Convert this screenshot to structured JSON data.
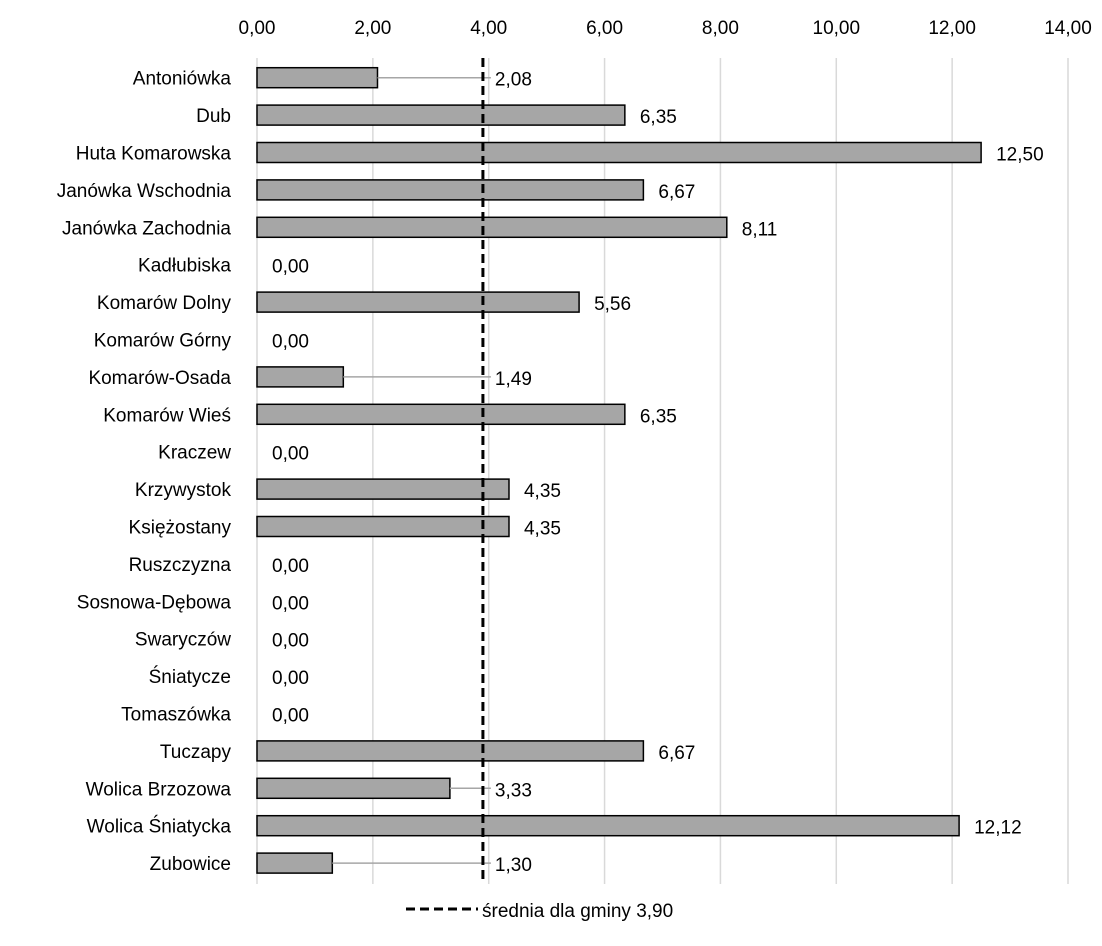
{
  "chart_data": {
    "type": "bar",
    "orientation": "horizontal",
    "categories": [
      "Antoniówka",
      "Dub",
      "Huta Komarowska",
      "Janówka Wschodnia",
      "Janówka Zachodnia",
      "Kadłubiska",
      "Komarów Dolny",
      "Komarów Górny",
      "Komarów-Osada",
      "Komarów Wieś",
      "Kraczew",
      "Krzywystok",
      "Księżostany",
      "Ruszczyzna",
      "Sosnowa-Dębowa",
      "Swaryczów",
      "Śniatycze",
      "Tomaszówka",
      "Tuczapy",
      "Wolica Brzozowa",
      "Wolica Śniatycka",
      "Zubowice"
    ],
    "values": [
      2.08,
      6.35,
      12.5,
      6.67,
      8.11,
      0.0,
      5.56,
      0.0,
      1.49,
      6.35,
      0.0,
      4.35,
      4.35,
      0.0,
      0.0,
      0.0,
      0.0,
      0.0,
      6.67,
      3.33,
      12.12,
      1.3
    ],
    "data_labels": [
      "2,08",
      "6,35",
      "12,50",
      "6,67",
      "8,11",
      "0,00",
      "5,56",
      "0,00",
      "1,49",
      "6,35",
      "0,00",
      "4,35",
      "4,35",
      "0,00",
      "0,00",
      "0,00",
      "0,00",
      "0,00",
      "6,67",
      "3,33",
      "12,12",
      "1,30"
    ],
    "xlim": [
      0,
      14
    ],
    "x_ticks": [
      0,
      2,
      4,
      6,
      8,
      10,
      12,
      14
    ],
    "x_tick_labels": [
      "0,00",
      "2,00",
      "4,00",
      "6,00",
      "8,00",
      "10,00",
      "12,00",
      "14,00"
    ],
    "x_axis_position": "top",
    "grid": true,
    "reference_line": {
      "value": 3.9,
      "style": "dashed",
      "label": "średnia dla gminy 3,90"
    },
    "legend_position": "bottom",
    "colors": {
      "bar_fill": "#a6a6a6",
      "bar_stroke": "#000000",
      "grid": "#d9d9d9",
      "reference": "#000000"
    },
    "title": "",
    "xlabel": "",
    "ylabel": ""
  }
}
